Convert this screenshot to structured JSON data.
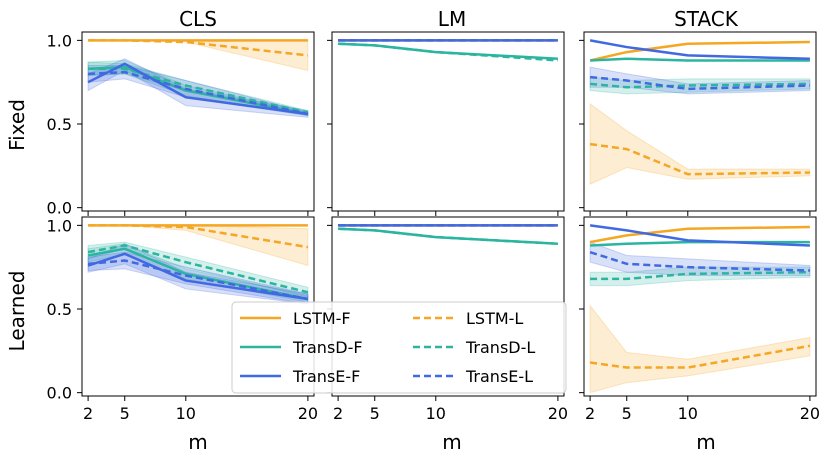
{
  "figure": {
    "column_titles": [
      "CLS",
      "LM",
      "STACK"
    ],
    "row_labels": [
      "Fixed",
      "Learned"
    ],
    "xlabel": "m"
  },
  "legend": {
    "entries": [
      {
        "label": "LSTM-F",
        "color": "#f5a623",
        "dash": false
      },
      {
        "label": "LSTM-L",
        "color": "#f5a623",
        "dash": true
      },
      {
        "label": "TransD-F",
        "color": "#2bb5a0",
        "dash": false
      },
      {
        "label": "TransD-L",
        "color": "#2bb5a0",
        "dash": true
      },
      {
        "label": "TransE-F",
        "color": "#4169e1",
        "dash": false
      },
      {
        "label": "TransE-L",
        "color": "#4169e1",
        "dash": true
      }
    ]
  },
  "chart_data": {
    "type": "line",
    "x": [
      2,
      5,
      10,
      20
    ],
    "xticks": [
      "2",
      "5",
      "10",
      "20"
    ],
    "yticks": [
      "0.0",
      "0.5",
      "1.0"
    ],
    "ylim": [
      -0.02,
      1.05
    ],
    "xlim": [
      1.5,
      20.5
    ],
    "colors": {
      "LSTM": "#f5a623",
      "TransD": "#2bb5a0",
      "TransE": "#4169e1"
    },
    "panels": [
      {
        "row": "Fixed",
        "column": "CLS",
        "series": [
          {
            "name": "LSTM-F",
            "values": [
              1.0,
              1.0,
              1.0,
              1.0
            ],
            "band": null
          },
          {
            "name": "LSTM-L",
            "values": [
              1.0,
              1.0,
              0.99,
              0.91
            ],
            "band": [
              [
                1.0,
                1.0
              ],
              [
                1.0,
                1.0
              ],
              [
                0.99,
                0.99
              ],
              [
                0.82,
                1.0
              ]
            ]
          },
          {
            "name": "TransD-F",
            "values": [
              0.83,
              0.84,
              0.7,
              0.56
            ],
            "band": [
              [
                0.79,
                0.87
              ],
              [
                0.8,
                0.88
              ],
              [
                0.67,
                0.73
              ],
              [
                0.55,
                0.57
              ]
            ]
          },
          {
            "name": "TransD-L",
            "values": [
              0.83,
              0.83,
              0.73,
              0.57
            ],
            "band": [
              [
                0.79,
                0.87
              ],
              [
                0.8,
                0.86
              ],
              [
                0.7,
                0.76
              ],
              [
                0.56,
                0.58
              ]
            ]
          },
          {
            "name": "TransE-F",
            "values": [
              0.75,
              0.86,
              0.66,
              0.56
            ],
            "band": [
              [
                0.7,
                0.8
              ],
              [
                0.82,
                0.89
              ],
              [
                0.61,
                0.71
              ],
              [
                0.54,
                0.58
              ]
            ]
          },
          {
            "name": "TransE-L",
            "values": [
              0.8,
              0.81,
              0.71,
              0.56
            ],
            "band": [
              [
                0.75,
                0.85
              ],
              [
                0.77,
                0.85
              ],
              [
                0.66,
                0.76
              ],
              [
                0.55,
                0.57
              ]
            ]
          }
        ]
      },
      {
        "row": "Fixed",
        "column": "LM",
        "series": [
          {
            "name": "LSTM-F",
            "values": [
              1.0,
              1.0,
              1.0,
              1.0
            ],
            "band": null
          },
          {
            "name": "LSTM-L",
            "values": [
              1.0,
              1.0,
              1.0,
              1.0
            ],
            "band": null
          },
          {
            "name": "TransD-F",
            "values": [
              0.98,
              0.97,
              0.93,
              0.89
            ],
            "band": null
          },
          {
            "name": "TransD-L",
            "values": [
              0.98,
              0.97,
              0.93,
              0.88
            ],
            "band": null
          },
          {
            "name": "TransE-F",
            "values": [
              1.0,
              1.0,
              1.0,
              1.0
            ],
            "band": null
          },
          {
            "name": "TransE-L",
            "values": [
              1.0,
              1.0,
              1.0,
              1.0
            ],
            "band": null
          }
        ]
      },
      {
        "row": "Fixed",
        "column": "STACK",
        "series": [
          {
            "name": "LSTM-F",
            "values": [
              0.88,
              0.93,
              0.98,
              0.99
            ],
            "band": null
          },
          {
            "name": "LSTM-L",
            "values": [
              0.38,
              0.35,
              0.2,
              0.21
            ],
            "band": [
              [
                0.14,
                0.62
              ],
              [
                0.24,
                0.46
              ],
              [
                0.17,
                0.23
              ],
              [
                0.19,
                0.23
              ]
            ]
          },
          {
            "name": "TransD-F",
            "values": [
              0.88,
              0.89,
              0.88,
              0.88
            ],
            "band": null
          },
          {
            "name": "TransD-L",
            "values": [
              0.74,
              0.72,
              0.73,
              0.74
            ],
            "band": [
              [
                0.7,
                0.78
              ],
              [
                0.68,
                0.76
              ],
              [
                0.69,
                0.77
              ],
              [
                0.71,
                0.77
              ]
            ]
          },
          {
            "name": "TransE-F",
            "values": [
              1.0,
              0.96,
              0.91,
              0.89
            ],
            "band": null
          },
          {
            "name": "TransE-L",
            "values": [
              0.78,
              0.76,
              0.71,
              0.73
            ],
            "band": [
              [
                0.72,
                0.84
              ],
              [
                0.72,
                0.8
              ],
              [
                0.68,
                0.74
              ],
              [
                0.7,
                0.76
              ]
            ]
          }
        ]
      },
      {
        "row": "Learned",
        "column": "CLS",
        "series": [
          {
            "name": "LSTM-F",
            "values": [
              1.0,
              1.0,
              1.0,
              1.0
            ],
            "band": null
          },
          {
            "name": "LSTM-L",
            "values": [
              1.0,
              1.0,
              0.99,
              0.87
            ],
            "band": [
              [
                1.0,
                1.0
              ],
              [
                1.0,
                1.0
              ],
              [
                0.97,
                1.0
              ],
              [
                0.76,
                0.98
              ]
            ]
          },
          {
            "name": "TransD-F",
            "values": [
              0.82,
              0.86,
              0.71,
              0.56
            ],
            "band": [
              [
                0.78,
                0.86
              ],
              [
                0.83,
                0.89
              ],
              [
                0.68,
                0.74
              ],
              [
                0.54,
                0.58
              ]
            ]
          },
          {
            "name": "TransD-L",
            "values": [
              0.84,
              0.88,
              0.78,
              0.6
            ],
            "band": [
              [
                0.8,
                0.88
              ],
              [
                0.86,
                0.9
              ],
              [
                0.75,
                0.81
              ],
              [
                0.57,
                0.63
              ]
            ]
          },
          {
            "name": "TransE-F",
            "values": [
              0.76,
              0.83,
              0.67,
              0.56
            ],
            "band": [
              [
                0.72,
                0.8
              ],
              [
                0.77,
                0.89
              ],
              [
                0.62,
                0.72
              ],
              [
                0.53,
                0.59
              ]
            ]
          },
          {
            "name": "TransE-L",
            "values": [
              0.77,
              0.79,
              0.7,
              0.56
            ],
            "band": [
              [
                0.73,
                0.81
              ],
              [
                0.74,
                0.84
              ],
              [
                0.65,
                0.75
              ],
              [
                0.53,
                0.59
              ]
            ]
          }
        ]
      },
      {
        "row": "Learned",
        "column": "LM",
        "series": [
          {
            "name": "LSTM-F",
            "values": [
              1.0,
              1.0,
              1.0,
              1.0
            ],
            "band": null
          },
          {
            "name": "LSTM-L",
            "values": [
              1.0,
              1.0,
              1.0,
              1.0
            ],
            "band": null
          },
          {
            "name": "TransD-F",
            "values": [
              0.98,
              0.97,
              0.93,
              0.89
            ],
            "band": null
          },
          {
            "name": "TransD-L",
            "values": [
              0.98,
              0.97,
              0.93,
              0.89
            ],
            "band": null
          },
          {
            "name": "TransE-F",
            "values": [
              1.0,
              1.0,
              1.0,
              1.0
            ],
            "band": null
          },
          {
            "name": "TransE-L",
            "values": [
              1.0,
              1.0,
              1.0,
              1.0
            ],
            "band": null
          }
        ]
      },
      {
        "row": "Learned",
        "column": "STACK",
        "series": [
          {
            "name": "LSTM-F",
            "values": [
              0.9,
              0.94,
              0.98,
              0.99
            ],
            "band": null
          },
          {
            "name": "LSTM-L",
            "values": [
              0.18,
              0.15,
              0.15,
              0.28
            ],
            "band": [
              [
                0.0,
                0.52
              ],
              [
                0.06,
                0.24
              ],
              [
                0.1,
                0.2
              ],
              [
                0.22,
                0.33
              ]
            ]
          },
          {
            "name": "TransD-F",
            "values": [
              0.88,
              0.89,
              0.9,
              0.9
            ],
            "band": null
          },
          {
            "name": "TransD-L",
            "values": [
              0.68,
              0.68,
              0.71,
              0.72
            ],
            "band": [
              [
                0.64,
                0.72
              ],
              [
                0.64,
                0.72
              ],
              [
                0.67,
                0.75
              ],
              [
                0.69,
                0.75
              ]
            ]
          },
          {
            "name": "TransE-F",
            "values": [
              1.0,
              0.97,
              0.91,
              0.88
            ],
            "band": null
          },
          {
            "name": "TransE-L",
            "values": [
              0.84,
              0.77,
              0.75,
              0.73
            ],
            "band": [
              [
                0.78,
                0.9
              ],
              [
                0.72,
                0.82
              ],
              [
                0.7,
                0.8
              ],
              [
                0.7,
                0.76
              ]
            ]
          }
        ]
      }
    ]
  }
}
